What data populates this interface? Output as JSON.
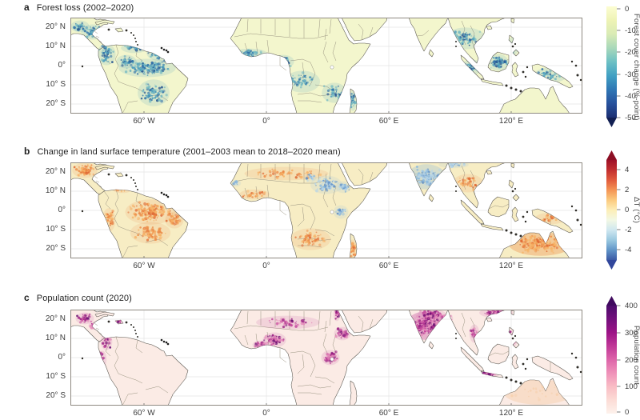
{
  "figure": {
    "background": "#ffffff",
    "axes": {
      "x_ticks": [
        "60° W",
        "0°",
        "60° E",
        "120° E"
      ],
      "y_ticks": [
        "20° N",
        "10° N",
        "0°",
        "10° S",
        "20° S"
      ]
    },
    "style_colors": {
      "ocean": "#ffffff",
      "frame": "#8f8a82",
      "gridline": "#e4e4e4",
      "country_border": "#98927f",
      "coastline": "#55524b",
      "small_island": "#2f2d28"
    },
    "panels": [
      {
        "letter": "a",
        "title": "Forest loss (2002–2020)",
        "land_color": "#f3f6cd",
        "palette": [
          "#74b9c2",
          "#4397bb",
          "#2b6da8",
          "#1d4e8e"
        ],
        "colorbar": {
          "label": "Forest cover change (%-point)",
          "ticks": [
            "0",
            "-10",
            "-20",
            "-30",
            "-40",
            "-50"
          ],
          "stops": [
            "#fcfdd2",
            "#eef3b5",
            "#d9ebb5",
            "#a8d8ba",
            "#6cc0c4",
            "#41a0c3",
            "#2f76b4",
            "#27519c",
            "#1c2f72"
          ],
          "arrow_bottom_color": "#121f52"
        }
      },
      {
        "letter": "b",
        "title": "Change in land surface temperature (2001–2003 mean to 2018–2020 mean)",
        "land_color": "#f7edc4",
        "palette_warm": [
          "#f6b266",
          "#ec8a46",
          "#de6733"
        ],
        "palette_cool": [
          "#b5d4e8",
          "#8ab8dc",
          "#6090c6"
        ],
        "colorbar": {
          "label": "ΔT (°C)",
          "ticks": [
            "4",
            "2",
            "0",
            "-2",
            "-4"
          ],
          "stops": [
            "#9e1127",
            "#c22e2f",
            "#e15a3c",
            "#f49455",
            "#fbca7e",
            "#fdeeb7",
            "#f2f8e4",
            "#cfe7f0",
            "#9ac8e0",
            "#6195c8",
            "#3b5aa5"
          ],
          "arrow_top_color": "#8c0e24",
          "arrow_bottom_color": "#31479c"
        }
      },
      {
        "letter": "c",
        "title": "Population count (2020)",
        "land_color": "#fbebe5",
        "palette": [
          "#e489b9",
          "#c2449b",
          "#97187f",
          "#650b6f"
        ],
        "colorbar": {
          "label": "Population count",
          "ticks": [
            "400",
            "300",
            "200",
            "100",
            "0"
          ],
          "stops": [
            "#4c0c6b",
            "#73107c",
            "#9c1386",
            "#c03897",
            "#dd64a9",
            "#ef92b9",
            "#f9bdc5",
            "#fcdcd6",
            "#fdf2ec"
          ],
          "arrow_top_color": "#3f0a5e"
        }
      }
    ]
  },
  "chart_data": [
    {
      "type": "heatmap",
      "subtype": "geographic-raster-map",
      "title": "Forest loss (2002–2020)",
      "x_axis": {
        "ticks": [
          "60° W",
          "0°",
          "60° E",
          "120° E"
        ]
      },
      "y_axis": {
        "ticks": [
          "20° N",
          "10° N",
          "0°",
          "10° S",
          "20° S"
        ]
      },
      "colorbar": {
        "label": "Forest cover change (%-point)",
        "ticks": [
          0,
          -10,
          -20,
          -30,
          -40,
          -50
        ],
        "range": [
          0,
          -50
        ],
        "extend": "min",
        "colormap": "pale yellow to teal to dark blue (YlGnBu-like)"
      },
      "visible_patterns": [
        "dense loss speckling along southern and eastern Amazon arc",
        "Central America and southern Mexico",
        "West Africa coast",
        "Congo basin margins",
        "Mozambique and Madagascar",
        "Indochina",
        "Sumatra and Borneo",
        "New Guinea sparse"
      ]
    },
    {
      "type": "heatmap",
      "subtype": "geographic-raster-map",
      "title": "Change in land surface temperature (2001–2003 mean to 2018–2020 mean)",
      "x_axis": {
        "ticks": [
          "60° W",
          "0°",
          "60° E",
          "120° E"
        ]
      },
      "y_axis": {
        "ticks": [
          "20° N",
          "10° N",
          "0°",
          "10° S",
          "20° S"
        ]
      },
      "colorbar": {
        "label": "ΔT (°C)",
        "ticks": [
          4,
          2,
          0,
          -2,
          -4
        ],
        "range": [
          -5,
          5
        ],
        "extend": "both",
        "colormap": "blue-white-yellow-red diverging (RdYlBu reversed)"
      },
      "visible_patterns": [
        "warming (orange/red) over central Brazil, Bolivia, Mexico, southern Africa and especially central Australia",
        "cooling (blue) over India, Sudan / South Sudan and Ethiopia",
        "mostly pale yellow elsewhere"
      ]
    },
    {
      "type": "heatmap",
      "subtype": "geographic-raster-map",
      "title": "Population count (2020)",
      "x_axis": {
        "ticks": [
          "60° W",
          "0°",
          "60° E",
          "120° E"
        ]
      },
      "y_axis": {
        "ticks": [
          "20° N",
          "10° N",
          "0°",
          "10° S",
          "20° S"
        ]
      },
      "colorbar": {
        "label": "Population count",
        "ticks": [
          400,
          300,
          200,
          100,
          0
        ],
        "range": [
          0,
          400
        ],
        "extend": "max",
        "colormap": "near-white pink to dark purple (RdPu-like)"
      },
      "visible_patterns": [
        "very dense (dark purple) over India, Ganges plain and Bangladesh",
        "Nigeria and West African coast",
        "Lake Victoria region and Ethiopian highlands",
        "central Mexico and Guatemala",
        "Java, Vietnam and southeastern China",
        "pale pink elsewhere"
      ]
    }
  ]
}
